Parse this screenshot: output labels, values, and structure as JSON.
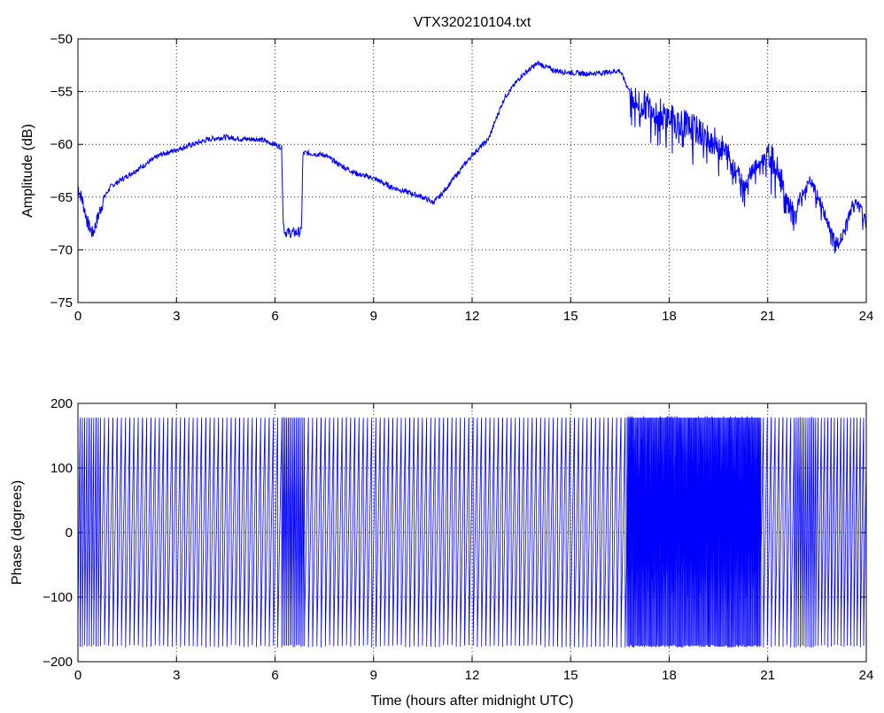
{
  "title": "VTX320210104.txt",
  "chart_data": [
    {
      "type": "line",
      "ylabel": "Amplitude (dB)",
      "xlabel": "",
      "xlim": [
        0,
        24
      ],
      "ylim": [
        -75,
        -50
      ],
      "xticks": [
        0,
        3,
        6,
        9,
        12,
        15,
        18,
        21,
        24
      ],
      "yticks": [
        -75,
        -70,
        -65,
        -60,
        -55,
        -50
      ],
      "ytick_labels": [
        "−75",
        "−70",
        "−65",
        "−60",
        "−55",
        "−50"
      ],
      "grid": true,
      "color": "#0000ff",
      "series": [
        {
          "x": [
            0,
            0.15,
            0.3,
            0.45,
            0.6,
            0.8,
            1.0,
            1.5,
            2.0,
            2.5,
            3.0,
            3.5,
            4.0,
            4.5,
            5.0,
            5.5,
            6.0,
            6.2,
            6.25,
            6.3,
            6.5,
            6.8,
            6.85,
            6.9,
            7.5,
            8.0,
            8.5,
            9.0,
            9.5,
            10.0,
            10.5,
            10.8,
            11.0,
            11.5,
            12.0,
            12.5,
            12.8,
            13.0,
            13.5,
            14.0,
            14.5,
            15.0,
            15.5,
            16.0,
            16.5,
            16.8,
            17.0,
            17.5,
            18.0,
            18.5,
            19.0,
            19.5,
            20.0,
            20.3,
            20.5,
            21.0,
            21.3,
            21.6,
            21.8,
            22.0,
            22.3,
            22.6,
            22.9,
            23.1,
            23.3,
            23.6,
            23.8,
            24.0
          ],
          "y": [
            -64,
            -65.5,
            -67.5,
            -68.5,
            -67,
            -65,
            -64,
            -63,
            -62,
            -61,
            -60.5,
            -60,
            -59.5,
            -59.3,
            -59.5,
            -59.5,
            -60,
            -60.3,
            -67.5,
            -68.3,
            -68.4,
            -68.3,
            -61,
            -60.8,
            -61,
            -62,
            -62.8,
            -63.2,
            -64,
            -64.5,
            -65,
            -65.5,
            -65,
            -63,
            -61,
            -59.5,
            -57,
            -55.5,
            -53.5,
            -52.3,
            -53,
            -53.2,
            -53.3,
            -53.2,
            -53,
            -55,
            -56,
            -56.5,
            -57.5,
            -58,
            -59,
            -60,
            -62,
            -64,
            -62.5,
            -61,
            -62,
            -66,
            -67,
            -65,
            -63.5,
            -65.5,
            -68,
            -69.5,
            -68.5,
            -65.5,
            -66,
            -67.5
          ]
        }
      ]
    },
    {
      "type": "line",
      "ylabel": "Phase (degrees)",
      "xlabel": "Time (hours after midnight UTC)",
      "xlim": [
        0,
        24
      ],
      "ylim": [
        -200,
        200
      ],
      "xticks": [
        0,
        3,
        6,
        9,
        12,
        15,
        18,
        21,
        24
      ],
      "yticks": [
        -200,
        -100,
        0,
        100,
        200
      ],
      "ytick_labels": [
        "−200",
        "−100",
        "0",
        "100",
        "200"
      ],
      "grid": true,
      "color": "#0000ff",
      "phase_wrap": [
        -180,
        180
      ],
      "wrap_period_hours": [
        {
          "from": 0,
          "to": 0.7,
          "period": 0.07
        },
        {
          "from": 0.7,
          "to": 6.2,
          "period": 0.13
        },
        {
          "from": 6.2,
          "to": 6.9,
          "period": 0.05
        },
        {
          "from": 6.9,
          "to": 16.7,
          "period": 0.13
        },
        {
          "from": 16.7,
          "to": 20.8,
          "period": 0.03
        },
        {
          "from": 20.8,
          "to": 21.8,
          "period": 0.12
        },
        {
          "from": 21.8,
          "to": 22.5,
          "period": 0.06
        },
        {
          "from": 22.5,
          "to": 24,
          "period": 0.1
        }
      ]
    }
  ]
}
